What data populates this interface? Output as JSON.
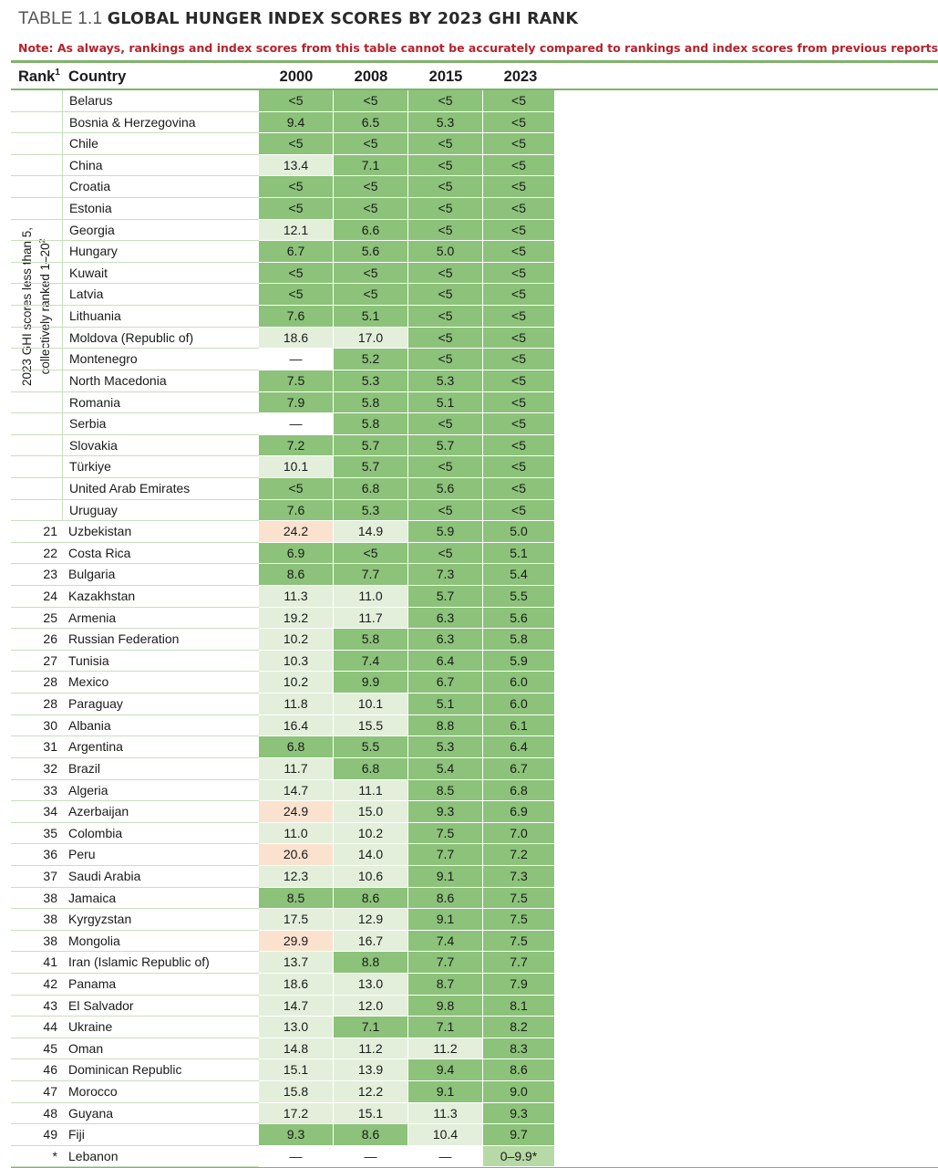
{
  "title": {
    "label": "TABLE 1.1",
    "text": "GLOBAL HUNGER INDEX SCORES BY 2023 GHI RANK"
  },
  "note": "Note: As always, rankings and index scores from this table cannot be accurately compared to rankings and index scores from previous reports",
  "header": {
    "rank": "Rank",
    "rank_sup": "1",
    "country": "Country",
    "years": [
      "2000",
      "2008",
      "2015",
      "2023"
    ]
  },
  "group_label": {
    "line1": "2023 GHI scores less than 5,",
    "line2": "collectively ranked 1–20",
    "line2_sup": "2"
  },
  "colors": {
    "dark_green": "#8cc27a",
    "mid_green": "#b7d9a6",
    "light_green": "#e3efdb",
    "peach": "#fbe2cf",
    "rule": "#7fb36b",
    "note_red": "#b4232d"
  },
  "rows": [
    {
      "rank": "",
      "country": "Belarus",
      "v": [
        "<5",
        "<5",
        "<5",
        "<5"
      ],
      "s": [
        "dg",
        "dg",
        "dg",
        "dg"
      ]
    },
    {
      "rank": "",
      "country": "Bosnia & Herzegovina",
      "v": [
        "9.4",
        "6.5",
        "5.3",
        "<5"
      ],
      "s": [
        "dg",
        "dg",
        "dg",
        "dg"
      ]
    },
    {
      "rank": "",
      "country": "Chile",
      "v": [
        "<5",
        "<5",
        "<5",
        "<5"
      ],
      "s": [
        "dg",
        "dg",
        "dg",
        "dg"
      ]
    },
    {
      "rank": "",
      "country": "China",
      "v": [
        "13.4",
        "7.1",
        "<5",
        "<5"
      ],
      "s": [
        "lg",
        "dg",
        "dg",
        "dg"
      ]
    },
    {
      "rank": "",
      "country": "Croatia",
      "v": [
        "<5",
        "<5",
        "<5",
        "<5"
      ],
      "s": [
        "dg",
        "dg",
        "dg",
        "dg"
      ]
    },
    {
      "rank": "",
      "country": "Estonia",
      "v": [
        "<5",
        "<5",
        "<5",
        "<5"
      ],
      "s": [
        "dg",
        "dg",
        "dg",
        "dg"
      ]
    },
    {
      "rank": "",
      "country": "Georgia",
      "v": [
        "12.1",
        "6.6",
        "<5",
        "<5"
      ],
      "s": [
        "lg",
        "dg",
        "dg",
        "dg"
      ]
    },
    {
      "rank": "",
      "country": "Hungary",
      "v": [
        "6.7",
        "5.6",
        "5.0",
        "<5"
      ],
      "s": [
        "dg",
        "dg",
        "dg",
        "dg"
      ]
    },
    {
      "rank": "",
      "country": "Kuwait",
      "v": [
        "<5",
        "<5",
        "<5",
        "<5"
      ],
      "s": [
        "dg",
        "dg",
        "dg",
        "dg"
      ]
    },
    {
      "rank": "",
      "country": "Latvia",
      "v": [
        "<5",
        "<5",
        "<5",
        "<5"
      ],
      "s": [
        "dg",
        "dg",
        "dg",
        "dg"
      ]
    },
    {
      "rank": "",
      "country": "Lithuania",
      "v": [
        "7.6",
        "5.1",
        "<5",
        "<5"
      ],
      "s": [
        "dg",
        "dg",
        "dg",
        "dg"
      ]
    },
    {
      "rank": "",
      "country": "Moldova (Republic of)",
      "v": [
        "18.6",
        "17.0",
        "<5",
        "<5"
      ],
      "s": [
        "lg",
        "lg",
        "dg",
        "dg"
      ]
    },
    {
      "rank": "",
      "country": "Montenegro",
      "v": [
        "—",
        "5.2",
        "<5",
        "<5"
      ],
      "s": [
        "wh",
        "dg",
        "dg",
        "dg"
      ]
    },
    {
      "rank": "",
      "country": "North Macedonia",
      "v": [
        "7.5",
        "5.3",
        "5.3",
        "<5"
      ],
      "s": [
        "dg",
        "dg",
        "dg",
        "dg"
      ]
    },
    {
      "rank": "",
      "country": "Romania",
      "v": [
        "7.9",
        "5.8",
        "5.1",
        "<5"
      ],
      "s": [
        "dg",
        "dg",
        "dg",
        "dg"
      ]
    },
    {
      "rank": "",
      "country": "Serbia",
      "v": [
        "—",
        "5.8",
        "<5",
        "<5"
      ],
      "s": [
        "wh",
        "dg",
        "dg",
        "dg"
      ]
    },
    {
      "rank": "",
      "country": "Slovakia",
      "v": [
        "7.2",
        "5.7",
        "5.7",
        "<5"
      ],
      "s": [
        "dg",
        "dg",
        "dg",
        "dg"
      ]
    },
    {
      "rank": "",
      "country": "Türkiye",
      "v": [
        "10.1",
        "5.7",
        "<5",
        "<5"
      ],
      "s": [
        "lg",
        "dg",
        "dg",
        "dg"
      ]
    },
    {
      "rank": "",
      "country": "United Arab Emirates",
      "v": [
        "<5",
        "6.8",
        "5.6",
        "<5"
      ],
      "s": [
        "dg",
        "dg",
        "dg",
        "dg"
      ]
    },
    {
      "rank": "",
      "country": "Uruguay",
      "v": [
        "7.6",
        "5.3",
        "<5",
        "<5"
      ],
      "s": [
        "dg",
        "dg",
        "dg",
        "dg"
      ]
    },
    {
      "rank": "21",
      "country": "Uzbekistan",
      "v": [
        "24.2",
        "14.9",
        "5.9",
        "5.0"
      ],
      "s": [
        "pk",
        "lg",
        "dg",
        "dg"
      ]
    },
    {
      "rank": "22",
      "country": "Costa Rica",
      "v": [
        "6.9",
        "<5",
        "<5",
        "5.1"
      ],
      "s": [
        "dg",
        "dg",
        "dg",
        "dg"
      ]
    },
    {
      "rank": "23",
      "country": "Bulgaria",
      "v": [
        "8.6",
        "7.7",
        "7.3",
        "5.4"
      ],
      "s": [
        "dg",
        "dg",
        "dg",
        "dg"
      ]
    },
    {
      "rank": "24",
      "country": "Kazakhstan",
      "v": [
        "11.3",
        "11.0",
        "5.7",
        "5.5"
      ],
      "s": [
        "lg",
        "lg",
        "dg",
        "dg"
      ]
    },
    {
      "rank": "25",
      "country": "Armenia",
      "v": [
        "19.2",
        "11.7",
        "6.3",
        "5.6"
      ],
      "s": [
        "lg",
        "lg",
        "dg",
        "dg"
      ]
    },
    {
      "rank": "26",
      "country": "Russian Federation",
      "v": [
        "10.2",
        "5.8",
        "6.3",
        "5.8"
      ],
      "s": [
        "lg",
        "dg",
        "dg",
        "dg"
      ]
    },
    {
      "rank": "27",
      "country": "Tunisia",
      "v": [
        "10.3",
        "7.4",
        "6.4",
        "5.9"
      ],
      "s": [
        "lg",
        "dg",
        "dg",
        "dg"
      ]
    },
    {
      "rank": "28",
      "country": "Mexico",
      "v": [
        "10.2",
        "9.9",
        "6.7",
        "6.0"
      ],
      "s": [
        "lg",
        "dg",
        "dg",
        "dg"
      ]
    },
    {
      "rank": "28",
      "country": "Paraguay",
      "v": [
        "11.8",
        "10.1",
        "5.1",
        "6.0"
      ],
      "s": [
        "lg",
        "lg",
        "dg",
        "dg"
      ]
    },
    {
      "rank": "30",
      "country": "Albania",
      "v": [
        "16.4",
        "15.5",
        "8.8",
        "6.1"
      ],
      "s": [
        "lg",
        "lg",
        "dg",
        "dg"
      ]
    },
    {
      "rank": "31",
      "country": "Argentina",
      "v": [
        "6.8",
        "5.5",
        "5.3",
        "6.4"
      ],
      "s": [
        "dg",
        "dg",
        "dg",
        "dg"
      ]
    },
    {
      "rank": "32",
      "country": "Brazil",
      "v": [
        "11.7",
        "6.8",
        "5.4",
        "6.7"
      ],
      "s": [
        "lg",
        "dg",
        "dg",
        "dg"
      ]
    },
    {
      "rank": "33",
      "country": "Algeria",
      "v": [
        "14.7",
        "11.1",
        "8.5",
        "6.8"
      ],
      "s": [
        "lg",
        "lg",
        "dg",
        "dg"
      ]
    },
    {
      "rank": "34",
      "country": "Azerbaijan",
      "v": [
        "24.9",
        "15.0",
        "9.3",
        "6.9"
      ],
      "s": [
        "pk",
        "lg",
        "dg",
        "dg"
      ]
    },
    {
      "rank": "35",
      "country": "Colombia",
      "v": [
        "11.0",
        "10.2",
        "7.5",
        "7.0"
      ],
      "s": [
        "lg",
        "lg",
        "dg",
        "dg"
      ]
    },
    {
      "rank": "36",
      "country": "Peru",
      "v": [
        "20.6",
        "14.0",
        "7.7",
        "7.2"
      ],
      "s": [
        "pk",
        "lg",
        "dg",
        "dg"
      ]
    },
    {
      "rank": "37",
      "country": "Saudi Arabia",
      "v": [
        "12.3",
        "10.6",
        "9.1",
        "7.3"
      ],
      "s": [
        "lg",
        "lg",
        "dg",
        "dg"
      ]
    },
    {
      "rank": "38",
      "country": "Jamaica",
      "v": [
        "8.5",
        "8.6",
        "8.6",
        "7.5"
      ],
      "s": [
        "dg",
        "dg",
        "dg",
        "dg"
      ]
    },
    {
      "rank": "38",
      "country": "Kyrgyzstan",
      "v": [
        "17.5",
        "12.9",
        "9.1",
        "7.5"
      ],
      "s": [
        "lg",
        "lg",
        "dg",
        "dg"
      ]
    },
    {
      "rank": "38",
      "country": "Mongolia",
      "v": [
        "29.9",
        "16.7",
        "7.4",
        "7.5"
      ],
      "s": [
        "pk",
        "lg",
        "dg",
        "dg"
      ]
    },
    {
      "rank": "41",
      "country": "Iran (Islamic Republic of)",
      "v": [
        "13.7",
        "8.8",
        "7.7",
        "7.7"
      ],
      "s": [
        "lg",
        "dg",
        "dg",
        "dg"
      ]
    },
    {
      "rank": "42",
      "country": "Panama",
      "v": [
        "18.6",
        "13.0",
        "8.7",
        "7.9"
      ],
      "s": [
        "lg",
        "lg",
        "dg",
        "dg"
      ]
    },
    {
      "rank": "43",
      "country": "El Salvador",
      "v": [
        "14.7",
        "12.0",
        "9.8",
        "8.1"
      ],
      "s": [
        "lg",
        "lg",
        "dg",
        "dg"
      ]
    },
    {
      "rank": "44",
      "country": "Ukraine",
      "v": [
        "13.0",
        "7.1",
        "7.1",
        "8.2"
      ],
      "s": [
        "lg",
        "dg",
        "dg",
        "dg"
      ]
    },
    {
      "rank": "45",
      "country": "Oman",
      "v": [
        "14.8",
        "11.2",
        "11.2",
        "8.3"
      ],
      "s": [
        "lg",
        "lg",
        "lg",
        "dg"
      ]
    },
    {
      "rank": "46",
      "country": "Dominican Republic",
      "v": [
        "15.1",
        "13.9",
        "9.4",
        "8.6"
      ],
      "s": [
        "lg",
        "lg",
        "dg",
        "dg"
      ]
    },
    {
      "rank": "47",
      "country": "Morocco",
      "v": [
        "15.8",
        "12.2",
        "9.1",
        "9.0"
      ],
      "s": [
        "lg",
        "lg",
        "dg",
        "dg"
      ]
    },
    {
      "rank": "48",
      "country": "Guyana",
      "v": [
        "17.2",
        "15.1",
        "11.3",
        "9.3"
      ],
      "s": [
        "lg",
        "lg",
        "lg",
        "dg"
      ]
    },
    {
      "rank": "49",
      "country": "Fiji",
      "v": [
        "9.3",
        "8.6",
        "10.4",
        "9.7"
      ],
      "s": [
        "dg",
        "dg",
        "lg",
        "dg"
      ]
    },
    {
      "rank": "*",
      "country": "Lebanon",
      "v": [
        "—",
        "—",
        "—",
        "0–9.9*"
      ],
      "s": [
        "wh",
        "wh",
        "wh",
        "mg"
      ]
    }
  ]
}
